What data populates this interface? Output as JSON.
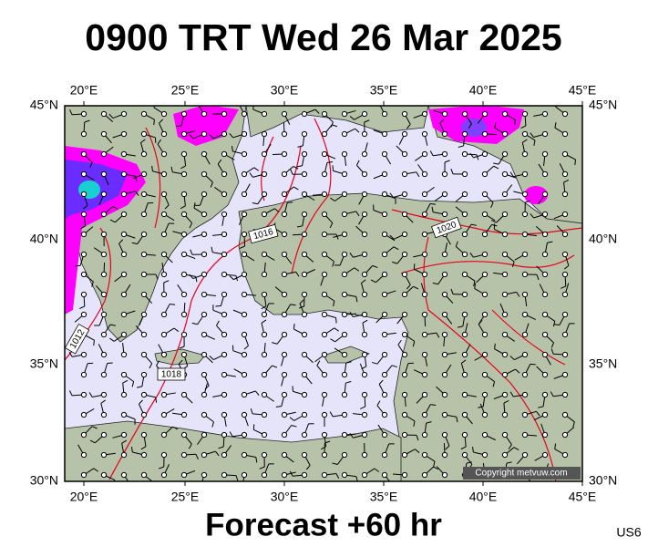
{
  "title": "0900 TRT Wed 26 Mar 2025",
  "lon_labels": [
    "20°E",
    "25°E",
    "30°E",
    "35°E",
    "40°E",
    "45°E"
  ],
  "lat_labels": [
    "45°N",
    "40°N",
    "35°N",
    "30°N"
  ],
  "isobar_labels": [
    "1016",
    "1020",
    "1012",
    "1018"
  ],
  "copyright": "Copyright metvuw.com",
  "footer": "Forecast +60 hr",
  "code": "US6"
}
